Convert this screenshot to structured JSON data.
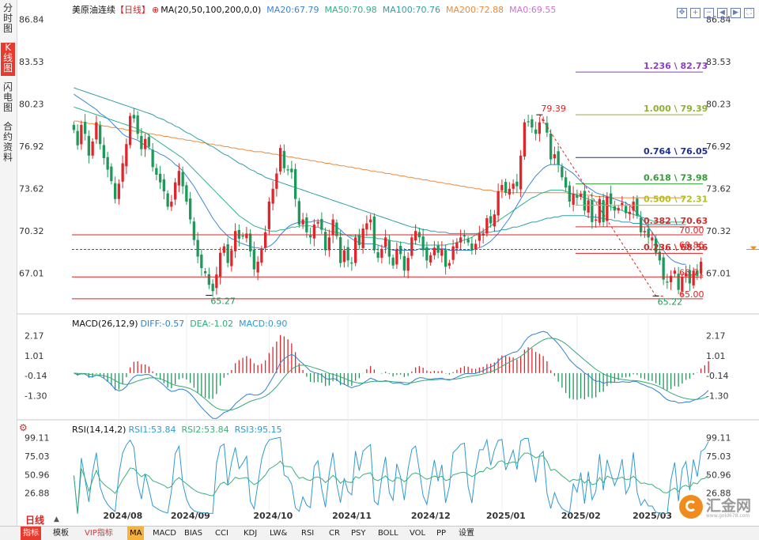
{
  "sidebar": {
    "tabs": [
      {
        "label": "分时图",
        "active": false
      },
      {
        "label": "K线图",
        "active": true
      },
      {
        "label": "闪电图",
        "active": false
      },
      {
        "label": "合约资料",
        "active": false
      }
    ]
  },
  "header": {
    "title": "美原油连续",
    "period_tag": "【日线】",
    "ma_params": "MA(20,50,100,200,0,0)",
    "ma20": "MA20:67.79",
    "ma50": "MA50:70.98",
    "ma100": "MA100:70.76",
    "ma200": "MA200:72.88",
    "ma_other": "MA0:69.55"
  },
  "macd_header": {
    "params": "MACD(26,12,9)",
    "diff": "DIFF:-0.57",
    "dea": "DEA:-1.02",
    "macd": "MACD:0.90"
  },
  "rsi_header": {
    "params": "RSI(14,14,2)",
    "rsi1": "RSI1:53.84",
    "rsi2": "RSI2:53.84",
    "rsi3": "RSI3:95.15"
  },
  "period_label": "日线",
  "colors": {
    "up": "#e0262a",
    "down": "#1d9a5a",
    "ma20": "#3a86d8",
    "ma50": "#2fb28a",
    "ma100": "#2f9fa8",
    "ma200": "#ee8a3a",
    "macd_diff": "#2f7fd0",
    "macd_dea": "#33aa77",
    "rsi1": "#2f9ad0",
    "rsi2": "#3ab07a",
    "axis_text": "#333333"
  },
  "chart_data": [
    {
      "type": "candlestick",
      "title": "美原油连续",
      "y_ticks": [
        "86.84",
        "83.53",
        "80.23",
        "76.92",
        "73.62",
        "70.32",
        "67.01"
      ],
      "ylim": [
        64.5,
        87.5
      ],
      "x_tick_labels": [
        "2024/08",
        "2024/09",
        "2024/10",
        "2024/11",
        "2024/12",
        "2025/01",
        "2025/02",
        "2025/03"
      ],
      "x_tick_index": [
        12,
        30,
        52,
        73,
        94,
        114,
        134,
        153
      ],
      "n_bars": 168,
      "closes": [
        78.2,
        77.0,
        78.6,
        77.9,
        76.2,
        77.3,
        78.8,
        77.1,
        76.0,
        75.1,
        74.2,
        72.8,
        74.0,
        75.6,
        77.1,
        79.3,
        79.1,
        77.9,
        76.7,
        77.5,
        76.9,
        75.3,
        74.7,
        74.1,
        73.4,
        72.2,
        72.6,
        74.1,
        75.0,
        73.8,
        72.6,
        71.2,
        69.6,
        68.3,
        67.4,
        67.0,
        66.1,
        65.6,
        66.9,
        68.6,
        69.1,
        67.8,
        68.8,
        70.3,
        69.7,
        69.9,
        70.1,
        68.7,
        67.3,
        67.9,
        68.9,
        70.2,
        72.6,
        73.6,
        74.8,
        76.8,
        75.2,
        75.1,
        74.9,
        72.8,
        70.8,
        71.2,
        70.2,
        69.8,
        70.8,
        71.0,
        70.4,
        68.8,
        69.8,
        71.2,
        69.9,
        67.8,
        68.8,
        68.0,
        67.8,
        69.8,
        69.2,
        70.5,
        70.9,
        71.2,
        68.8,
        68.2,
        68.9,
        69.8,
        68.3,
        67.6,
        68.9,
        68.5,
        67.2,
        68.2,
        69.8,
        70.3,
        69.8,
        68.8,
        68.0,
        68.4,
        69.0,
        68.6,
        68.9,
        67.5,
        67.8,
        69.1,
        69.4,
        69.8,
        69.9,
        69.4,
        68.8,
        69.3,
        70.1,
        70.1,
        71.3,
        70.9,
        71.6,
        73.4,
        73.9,
        73.3,
        73.6,
        74.0,
        73.8,
        76.2,
        78.8,
        78.8,
        78.4,
        77.9,
        78.8,
        79.0,
        78.0,
        75.9,
        76.3,
        75.5,
        74.5,
        73.7,
        72.6,
        73.2,
        72.9,
        73.2,
        71.9,
        72.7,
        71.0,
        71.2,
        72.8,
        71.0,
        73.0,
        72.4,
        71.9,
        72.1,
        72.5,
        71.7,
        71.8,
        72.6,
        71.5,
        70.2,
        70.3,
        69.8,
        69.8,
        68.6,
        68.0,
        66.5,
        66.3,
        66.8,
        67.2,
        65.7,
        66.7,
        67.0,
        66.2,
        67.2,
        66.8,
        67.9,
        68.1,
        69.0
      ],
      "ma20": [
        81.0,
        80.8,
        80.6,
        80.4,
        80.2,
        80.0,
        79.8,
        79.5,
        79.3,
        79.1,
        78.8,
        78.5,
        78.2,
        77.9,
        77.7,
        77.6,
        77.5,
        77.4,
        77.2,
        77.0,
        76.8,
        76.6,
        76.5,
        76.3,
        76.2,
        76.0,
        75.8,
        75.5,
        75.3,
        75.0,
        74.6,
        74.2,
        73.8,
        73.3,
        72.8,
        72.3,
        71.8,
        71.3,
        70.9,
        70.5,
        70.2,
        69.9,
        69.7,
        69.6,
        69.4,
        69.3,
        69.2,
        69.1,
        69.0,
        69.0,
        68.9,
        69.0,
        69.1,
        69.3,
        69.6,
        70.0,
        70.3,
        70.6,
        70.8,
        70.9,
        71.0,
        71.0,
        71.0,
        71.0,
        71.1,
        71.1,
        71.1,
        71.0,
        70.9,
        70.8,
        70.6,
        70.4,
        70.1,
        69.9,
        69.7,
        69.5,
        69.4,
        69.3,
        69.3,
        69.3,
        69.3,
        69.2,
        69.1,
        69.0,
        68.9,
        68.8,
        68.8,
        68.8,
        68.8,
        68.8,
        68.8,
        68.8,
        68.9,
        68.9,
        68.9,
        68.9,
        68.9,
        68.9,
        68.9,
        68.9,
        68.8,
        68.8,
        68.8,
        68.8,
        68.8,
        68.8,
        68.8,
        68.9,
        69.0,
        69.1,
        69.3,
        69.5,
        69.8,
        70.1,
        70.5,
        70.9,
        71.3,
        71.8,
        72.3,
        72.8,
        73.3,
        73.8,
        74.2,
        74.6,
        74.9,
        75.2,
        75.4,
        75.5,
        75.5,
        75.5,
        75.4,
        75.2,
        75.0,
        74.8,
        74.5,
        74.2,
        73.9,
        73.7,
        73.5,
        73.3,
        73.2,
        73.1,
        73.0,
        72.9,
        72.8,
        72.7,
        72.6,
        72.5,
        72.3,
        72.0,
        71.7,
        71.4,
        71.0,
        70.6,
        70.2,
        69.7,
        69.2,
        68.8,
        68.4,
        68.1,
        67.9,
        67.8,
        67.7,
        67.7
      ],
      "ma50": [
        80.0,
        79.9,
        79.8,
        79.7,
        79.6,
        79.5,
        79.4,
        79.3,
        79.2,
        79.1,
        79.0,
        78.9,
        78.8,
        78.7,
        78.6,
        78.5,
        78.4,
        78.3,
        78.1,
        78.0,
        77.8,
        77.6,
        77.4,
        77.2,
        77.0,
        76.8,
        76.6,
        76.4,
        76.2,
        76.0,
        75.7,
        75.4,
        75.1,
        74.8,
        74.5,
        74.2,
        73.9,
        73.6,
        73.3,
        73.0,
        72.7,
        72.4,
        72.1,
        71.8,
        71.5,
        71.3,
        71.1,
        70.9,
        70.7,
        70.6,
        70.5,
        70.4,
        70.3,
        70.3,
        70.3,
        70.4,
        70.4,
        70.5,
        70.6,
        70.6,
        70.7,
        70.7,
        70.7,
        70.7,
        70.6,
        70.6,
        70.5,
        70.4,
        70.3,
        70.2,
        70.2,
        70.1,
        70.0,
        70.0,
        69.9,
        69.9,
        69.9,
        69.8,
        69.8,
        69.8,
        69.8,
        69.7,
        69.7,
        69.6,
        69.6,
        69.5,
        69.5,
        69.4,
        69.4,
        69.3,
        69.3,
        69.3,
        69.2,
        69.2,
        69.2,
        69.2,
        69.2,
        69.2,
        69.2,
        69.2,
        69.3,
        69.3,
        69.4,
        69.5,
        69.6,
        69.7,
        69.8,
        70.0,
        70.2,
        70.3,
        70.5,
        70.7,
        70.9,
        71.1,
        71.3,
        71.5,
        71.7,
        71.9,
        72.1,
        72.3,
        72.5,
        72.7,
        72.9,
        73.0,
        73.2,
        73.3,
        73.4,
        73.5,
        73.5,
        73.5,
        73.5,
        73.4,
        73.3,
        73.2,
        73.1,
        73.0,
        72.9,
        72.8,
        72.7,
        72.6,
        72.5,
        72.4,
        72.3,
        72.2,
        72.1,
        72.0,
        71.9,
        71.8,
        71.7,
        71.6,
        71.5,
        71.4,
        71.3,
        71.2,
        71.1,
        71.0,
        71.0,
        71.0,
        71.0,
        71.0,
        71.0,
        71.0,
        71.0,
        71.0
      ],
      "ma100": [
        81.5,
        81.4,
        81.3,
        81.2,
        81.1,
        81.0,
        80.9,
        80.8,
        80.7,
        80.6,
        80.5,
        80.4,
        80.3,
        80.2,
        80.1,
        80.0,
        79.9,
        79.8,
        79.7,
        79.6,
        79.5,
        79.4,
        79.2,
        79.1,
        79.0,
        78.8,
        78.7,
        78.5,
        78.4,
        78.2,
        78.0,
        77.9,
        77.7,
        77.5,
        77.4,
        77.2,
        77.0,
        76.9,
        76.7,
        76.5,
        76.3,
        76.2,
        76.0,
        75.8,
        75.6,
        75.5,
        75.3,
        75.1,
        75.0,
        74.8,
        74.7,
        74.5,
        74.4,
        74.3,
        74.2,
        74.1,
        74.0,
        73.9,
        73.8,
        73.7,
        73.6,
        73.5,
        73.4,
        73.3,
        73.2,
        73.1,
        73.0,
        72.9,
        72.8,
        72.7,
        72.6,
        72.5,
        72.4,
        72.3,
        72.2,
        72.1,
        72.0,
        71.9,
        71.8,
        71.7,
        71.6,
        71.5,
        71.4,
        71.3,
        71.2,
        71.1,
        71.0,
        70.9,
        70.8,
        70.7,
        70.6,
        70.6,
        70.5,
        70.4,
        70.4,
        70.3,
        70.3,
        70.2,
        70.2,
        70.2,
        70.1,
        70.1,
        70.1,
        70.1,
        70.1,
        70.1,
        70.1,
        70.1,
        70.1,
        70.2,
        70.2,
        70.2,
        70.3,
        70.3,
        70.4,
        70.4,
        70.5,
        70.6,
        70.6,
        70.7,
        70.8,
        70.9,
        71.0,
        71.0,
        71.1,
        71.2,
        71.3,
        71.3,
        71.4,
        71.4,
        71.5,
        71.5,
        71.5,
        71.5,
        71.5,
        71.5,
        71.5,
        71.4,
        71.4,
        71.4,
        71.3,
        71.3,
        71.2,
        71.2,
        71.1,
        71.1,
        71.0,
        71.0,
        71.0,
        70.9,
        70.9,
        70.9,
        70.8,
        70.8,
        70.8,
        70.8,
        70.8,
        70.8,
        70.8,
        70.8,
        70.8,
        70.8,
        70.8,
        70.8
      ],
      "ma200": [
        78.9,
        78.9,
        78.8,
        78.8,
        78.7,
        78.7,
        78.6,
        78.6,
        78.5,
        78.5,
        78.4,
        78.4,
        78.3,
        78.3,
        78.2,
        78.2,
        78.1,
        78.1,
        78.0,
        78.0,
        77.9,
        77.9,
        77.8,
        77.8,
        77.7,
        77.7,
        77.6,
        77.6,
        77.5,
        77.5,
        77.4,
        77.4,
        77.3,
        77.3,
        77.2,
        77.2,
        77.1,
        77.1,
        77.0,
        77.0,
        76.9,
        76.9,
        76.8,
        76.8,
        76.7,
        76.7,
        76.6,
        76.6,
        76.5,
        76.5,
        76.5,
        76.4,
        76.4,
        76.3,
        76.3,
        76.2,
        76.2,
        76.1,
        76.1,
        76.0,
        76.0,
        75.9,
        75.9,
        75.8,
        75.8,
        75.7,
        75.7,
        75.6,
        75.6,
        75.5,
        75.5,
        75.4,
        75.4,
        75.3,
        75.3,
        75.2,
        75.2,
        75.1,
        75.1,
        75.0,
        75.0,
        74.9,
        74.9,
        74.8,
        74.8,
        74.7,
        74.7,
        74.6,
        74.6,
        74.5,
        74.5,
        74.4,
        74.4,
        74.3,
        74.3,
        74.2,
        74.2,
        74.1,
        74.1,
        74.0,
        74.0,
        73.9,
        73.9,
        73.8,
        73.8,
        73.7,
        73.7,
        73.6,
        73.6,
        73.5,
        73.5,
        73.5,
        73.4,
        73.4,
        73.4,
        73.3,
        73.3,
        73.3,
        73.3,
        73.3,
        73.3,
        73.3,
        73.3,
        73.3,
        73.3,
        73.3,
        73.3,
        73.3,
        73.3,
        73.3,
        73.3,
        73.3,
        73.2,
        73.2,
        73.2,
        73.2,
        73.1,
        73.1,
        73.1,
        73.0,
        73.0,
        73.0,
        72.9,
        72.9,
        72.9,
        72.9,
        72.9,
        72.9,
        72.9,
        72.9,
        72.9,
        72.9,
        72.9,
        72.9,
        72.9,
        72.9,
        72.9,
        72.9,
        72.9,
        72.9,
        72.9,
        72.9,
        72.9,
        72.9
      ],
      "horizontal_levels": [
        {
          "label": "70.00",
          "value": 70.0
        },
        {
          "label": "68.86",
          "value": 68.86
        },
        {
          "label": "66.71",
          "value": 66.71
        },
        {
          "label": "65.00",
          "value": 65.0
        }
      ],
      "fibonacci_levels": [
        {
          "label": "1.236 \\ 82.73",
          "value": 82.73,
          "color": "#8a3fbf"
        },
        {
          "label": "1.000 \\ 79.39",
          "value": 79.39,
          "color": "#8fb030"
        },
        {
          "label": "0.764 \\ 76.05",
          "value": 76.05,
          "color": "#1d2d9a"
        },
        {
          "label": "0.618 \\ 73.98",
          "value": 73.98,
          "color": "#30a030"
        },
        {
          "label": "0.500 \\ 72.31",
          "value": 72.31,
          "color": "#b0c020"
        },
        {
          "label": "0.382 \\ 70.63",
          "value": 70.63,
          "color": "#d03030"
        },
        {
          "label": "0.236 \\ 68.56",
          "value": 68.56,
          "color": "#e02020"
        }
      ],
      "annotations": [
        {
          "text": "65.27",
          "index": 36,
          "value": 65.27
        },
        {
          "text": "79.39",
          "index": 124,
          "value": 79.39
        },
        {
          "text": "65.22",
          "index": 155,
          "value": 65.22
        }
      ],
      "current_price_tag": "69.12"
    },
    {
      "type": "bar+line",
      "title": "MACD(26,12,9)",
      "y_ticks": [
        "2.17",
        "1.01",
        "-0.14",
        "-1.30"
      ],
      "ylim": [
        -2.2,
        2.6
      ]
    },
    {
      "type": "line",
      "title": "RSI(14,14,2)",
      "y_ticks": [
        "99.11",
        "75.03",
        "50.96",
        "26.88"
      ],
      "ylim": [
        10,
        105
      ]
    }
  ],
  "bottom_bar": {
    "tabs": [
      "指标",
      "模板",
      "VIP指标",
      "MA",
      "MACD",
      "BIAS",
      "CCI",
      "KDJ",
      "LW&",
      "RSI",
      "CR",
      "PSY",
      "BOLL",
      "VOL",
      "PP",
      "设置"
    ]
  },
  "logo": {
    "text": "汇金网",
    "sub": "www.gold678.com"
  }
}
